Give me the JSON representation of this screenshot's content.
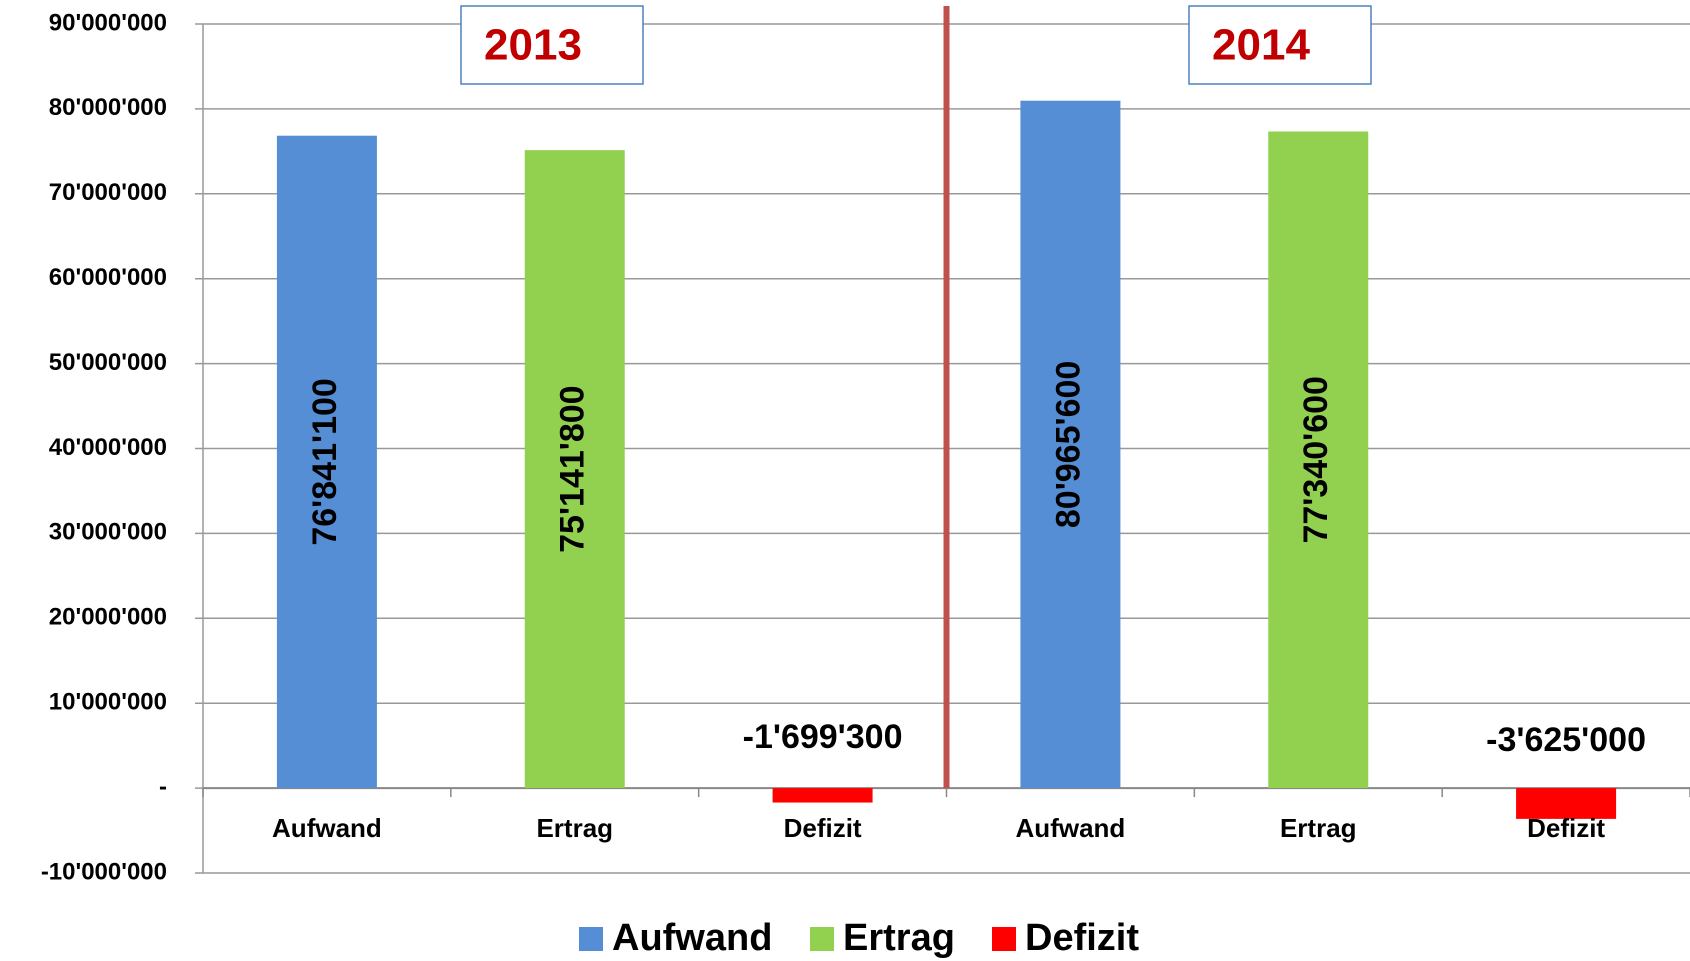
{
  "chart_data": {
    "type": "bar",
    "categories": [
      "Aufwand",
      "Ertrag",
      "Defizit",
      "Aufwand",
      "Ertrag",
      "Defizit"
    ],
    "series": [
      {
        "name": "Aufwand",
        "color": "#558ed5",
        "values": [
          76841100,
          null,
          null,
          80965600,
          null,
          null
        ],
        "value_labels": [
          "76'841'100",
          null,
          null,
          "80'965'600",
          null,
          null
        ]
      },
      {
        "name": "Ertrag",
        "color": "#92d050",
        "values": [
          null,
          75141800,
          null,
          null,
          77340600,
          null
        ],
        "value_labels": [
          null,
          "75'141'800",
          null,
          null,
          "77'340'600",
          null
        ]
      },
      {
        "name": "Defizit",
        "color": "#ff0000",
        "values": [
          null,
          null,
          -1699300,
          null,
          null,
          -3625000
        ],
        "value_labels": [
          null,
          null,
          "-1'699'300",
          null,
          null,
          "-3'625'000"
        ]
      }
    ],
    "annotations": [
      "2013",
      "2014"
    ],
    "ylim": [
      -10000000,
      90000000
    ],
    "yticks": [
      {
        "value": -10000000,
        "label": "-10'000'000"
      },
      {
        "value": 0,
        "label": "-"
      },
      {
        "value": 10000000,
        "label": "10'000'000"
      },
      {
        "value": 20000000,
        "label": "20'000'000"
      },
      {
        "value": 30000000,
        "label": "30'000'000"
      },
      {
        "value": 40000000,
        "label": "40'000'000"
      },
      {
        "value": 50000000,
        "label": "50'000'000"
      },
      {
        "value": 60000000,
        "label": "60'000'000"
      },
      {
        "value": 70000000,
        "label": "70'000'000"
      },
      {
        "value": 80000000,
        "label": "80'000'000"
      },
      {
        "value": 90000000,
        "label": "90'000'000"
      }
    ],
    "grid": true,
    "legend": "bottom"
  }
}
